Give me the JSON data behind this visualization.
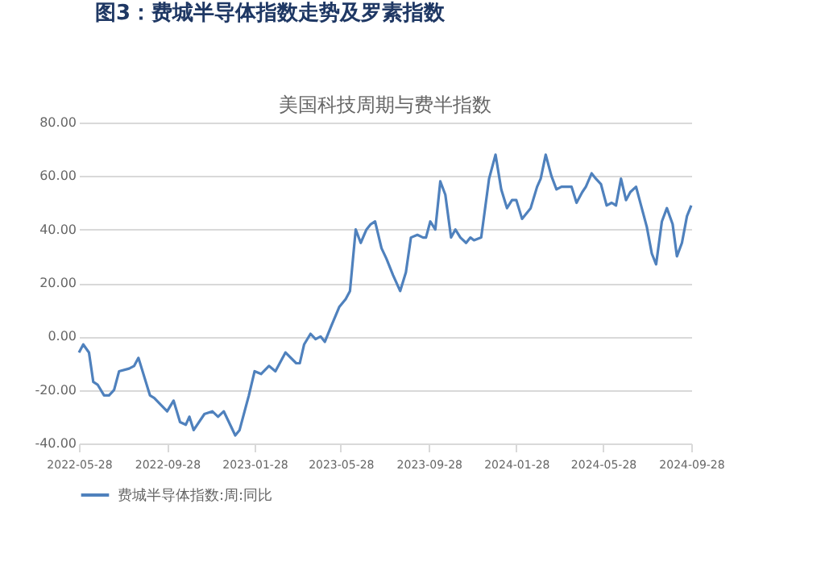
{
  "chart_data": {
    "type": "line",
    "title": "美国科技周期与费半指数",
    "annotations": [
      "图3：费城半导体指数走势及罗素指数"
    ],
    "x": [
      "2022-05-28",
      "2022-06-03",
      "2022-06-11",
      "2022-06-17",
      "2022-06-23",
      "2022-07-02",
      "2022-07-09",
      "2022-07-16",
      "2022-07-23",
      "2022-08-06",
      "2022-08-13",
      "2022-08-19",
      "2022-09-04",
      "2022-09-10",
      "2022-09-28",
      "2022-10-07",
      "2022-10-16",
      "2022-10-24",
      "2022-10-29",
      "2022-11-04",
      "2022-11-19",
      "2022-11-30",
      "2022-12-08",
      "2022-12-16",
      "2023-01-01",
      "2023-01-07",
      "2023-01-20",
      "2023-01-28",
      "2023-02-06",
      "2023-02-17",
      "2023-02-26",
      "2023-03-12",
      "2023-03-27",
      "2023-04-01",
      "2023-04-07",
      "2023-04-16",
      "2023-04-23",
      "2023-04-30",
      "2023-05-06",
      "2023-05-15",
      "2023-05-26",
      "2023-06-04",
      "2023-06-10",
      "2023-06-18",
      "2023-06-25",
      "2023-07-03",
      "2023-07-09",
      "2023-07-15",
      "2023-07-24",
      "2023-07-31",
      "2023-08-09",
      "2023-08-19",
      "2023-08-27",
      "2023-09-03",
      "2023-09-12",
      "2023-09-20",
      "2023-09-24",
      "2023-09-30",
      "2023-10-07",
      "2023-10-14",
      "2023-10-21",
      "2023-10-29",
      "2023-11-04",
      "2023-11-11",
      "2023-11-19",
      "2023-11-25",
      "2023-11-30",
      "2023-12-10",
      "2023-12-21",
      "2023-12-30",
      "2024-01-07",
      "2024-01-15",
      "2024-01-22",
      "2024-01-28",
      "2024-02-05",
      "2024-02-17",
      "2024-02-26",
      "2024-03-02",
      "2024-03-09",
      "2024-03-17",
      "2024-03-24",
      "2024-03-31",
      "2024-04-14",
      "2024-04-21",
      "2024-04-29",
      "2024-05-04",
      "2024-05-12",
      "2024-05-18",
      "2024-05-25",
      "2024-06-02",
      "2024-06-09",
      "2024-06-15",
      "2024-06-22",
      "2024-06-29",
      "2024-07-05",
      "2024-07-13",
      "2024-07-20",
      "2024-07-28",
      "2024-08-04",
      "2024-08-10",
      "2024-08-18",
      "2024-08-25",
      "2024-09-02",
      "2024-09-08",
      "2024-09-15",
      "2024-09-22",
      "2024-09-28"
    ],
    "series": [
      {
        "name": "费城半导体指数:周:同比",
        "color": "#4f81bd",
        "values": [
          -6,
          -3,
          -6,
          -17,
          -18,
          -22,
          -22,
          -20,
          -13,
          -12,
          -11,
          -8,
          -22,
          -23,
          -28,
          -24,
          -32,
          -33,
          -30,
          -35,
          -29,
          -28,
          -30,
          -28,
          -37,
          -35,
          -22,
          -13,
          -14,
          -11,
          -13,
          -6,
          -10,
          -10,
          -3,
          1,
          -1,
          0,
          -2,
          4,
          11,
          14,
          17,
          40,
          35,
          40,
          42,
          43,
          33,
          29,
          23,
          17,
          24,
          37,
          38,
          37,
          37,
          43,
          40,
          58,
          53,
          37,
          40,
          37,
          35,
          37,
          36,
          37,
          59,
          68,
          55,
          48,
          51,
          51,
          44,
          48,
          56,
          59,
          68,
          60,
          55,
          56,
          56,
          50,
          54,
          56,
          61,
          59,
          57,
          49,
          50,
          49,
          59,
          51,
          54,
          56,
          49,
          41,
          31,
          27,
          43,
          48,
          42,
          30,
          35,
          45,
          49
        ]
      }
    ],
    "xlim": [
      "2022-05-28",
      "2024-09-28"
    ],
    "xticks": [
      "2022-05-28",
      "2022-09-28",
      "2023-01-28",
      "2023-05-28",
      "2023-09-28",
      "2024-01-28",
      "2024-05-28",
      "2024-09-28"
    ],
    "ylim": [
      -40,
      80
    ],
    "yticks": [
      {
        "value": -40,
        "label": "-40.00"
      },
      {
        "value": -20,
        "label": "-20.00"
      },
      {
        "value": 0,
        "label": "0.00"
      },
      {
        "value": 20,
        "label": "20.00"
      },
      {
        "value": 40,
        "label": "40.00"
      },
      {
        "value": 60,
        "label": "60.00"
      },
      {
        "value": 80,
        "label": "80.00"
      }
    ],
    "grid": "y",
    "legend": "bottom",
    "marker": "none",
    "line_style": "solid"
  }
}
